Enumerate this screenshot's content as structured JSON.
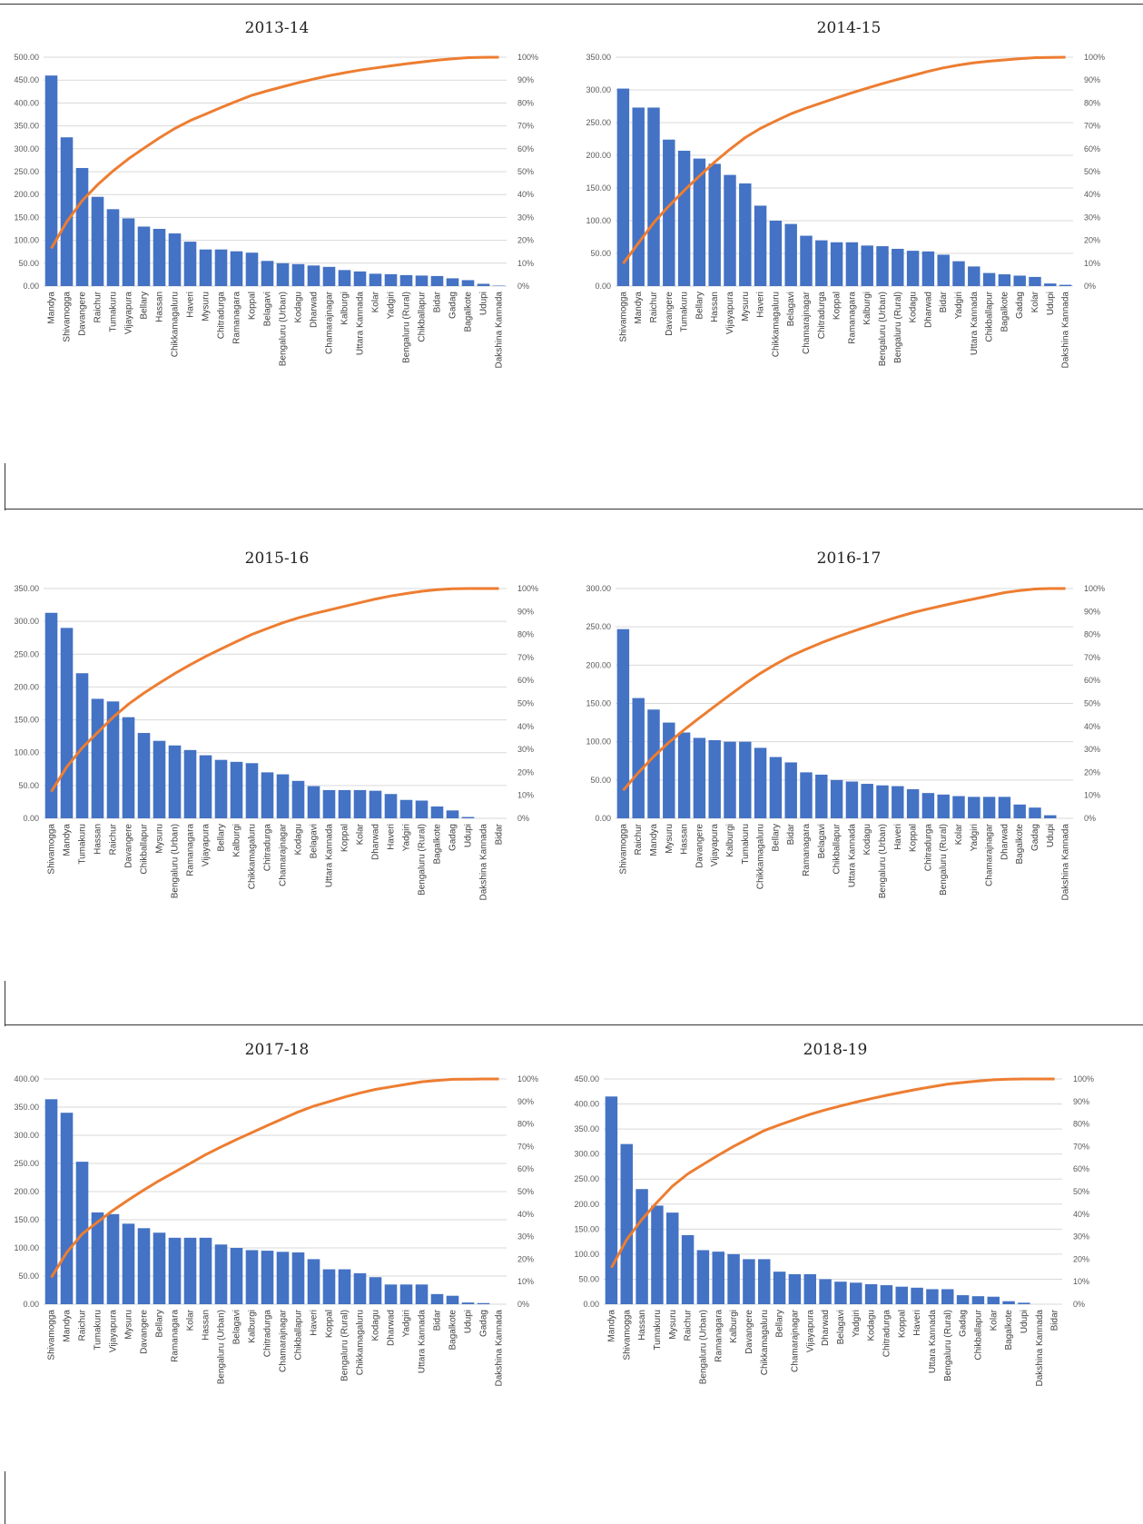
{
  "chart_data": [
    {
      "type": "bar",
      "title": "2013-14",
      "ylim": [
        0,
        500
      ],
      "yticks": [
        "0.00",
        "50.00",
        "100.00",
        "150.00",
        "200.00",
        "250.00",
        "300.00",
        "350.00",
        "400.00",
        "450.00",
        "500.00"
      ],
      "y2ticks": [
        "0%",
        "10%",
        "20%",
        "30%",
        "40%",
        "50%",
        "60%",
        "70%",
        "80%",
        "90%",
        "100%"
      ],
      "categories": [
        "Mandya",
        "Shivamogga",
        "Davangere",
        "Raichur",
        "Tumakuru",
        "Vijayapura",
        "Bellary",
        "Hassan",
        "Chikkamagaluru",
        "Haveri",
        "Mysuru",
        "Chitradurga",
        "Ramanagara",
        "Koppal",
        "Belagavi",
        "Bengaluru (Urban)",
        "Kodagu",
        "Dharwad",
        "Chamarajnagar",
        "Kalburgi",
        "Uttara Kannada",
        "Kolar",
        "Yadgiri",
        "Bengaluru (Rural)",
        "Chikballapur",
        "Bidar",
        "Gadag",
        "Bagalkote",
        "Udupi",
        "Dakshina Kannada"
      ],
      "values": [
        460,
        325,
        258,
        195,
        168,
        148,
        130,
        125,
        115,
        97,
        80,
        80,
        76,
        73,
        55,
        50,
        48,
        45,
        42,
        35,
        32,
        27,
        26,
        24,
        23,
        22,
        17,
        13,
        5,
        1
      ],
      "line_color": "#ED7D31",
      "bar_color": "#4472C4",
      "grid": true,
      "legend": "none"
    },
    {
      "type": "bar",
      "title": "2014-15",
      "ylim": [
        0,
        350
      ],
      "yticks": [
        "0.00",
        "50.00",
        "100.00",
        "150.00",
        "200.00",
        "250.00",
        "300.00",
        "350.00"
      ],
      "y2ticks": [
        "0%",
        "10%",
        "20%",
        "30%",
        "40%",
        "50%",
        "60%",
        "70%",
        "80%",
        "90%",
        "100%"
      ],
      "categories": [
        "Shivamogga",
        "Mandya",
        "Raichur",
        "Davangere",
        "Tumakuru",
        "Bellary",
        "Hassan",
        "Vijayapura",
        "Mysuru",
        "Haveri",
        "Chikkamagaluru",
        "Belagavi",
        "Chamarajnagar",
        "Chitradurga",
        "Koppal",
        "Ramanagara",
        "Kalburgi",
        "Bengaluru (Urban)",
        "Bengaluru (Rural)",
        "Kodagu",
        "Dharwad",
        "Bidar",
        "Yadgiri",
        "Uttara Kannada",
        "Chikballapur",
        "Bagalkote",
        "Gadag",
        "Kolar",
        "Udupi",
        "Dakshina Kannada"
      ],
      "values": [
        302,
        273,
        273,
        224,
        207,
        195,
        187,
        170,
        157,
        123,
        100,
        95,
        77,
        70,
        67,
        67,
        62,
        61,
        57,
        54,
        53,
        48,
        38,
        30,
        20,
        18,
        16,
        14,
        4,
        2
      ],
      "line_color": "#ED7D31",
      "bar_color": "#4472C4",
      "grid": true,
      "legend": "none"
    },
    {
      "type": "bar",
      "title": "2015-16",
      "ylim": [
        0,
        350
      ],
      "yticks": [
        "0.00",
        "50.00",
        "100.00",
        "150.00",
        "200.00",
        "250.00",
        "300.00",
        "350.00"
      ],
      "y2ticks": [
        "0%",
        "10%",
        "20%",
        "30%",
        "40%",
        "50%",
        "60%",
        "70%",
        "80%",
        "90%",
        "100%"
      ],
      "categories": [
        "Shivamogga",
        "Mandya",
        "Tumakuru",
        "Hassan",
        "Raichur",
        "Davangere",
        "Chikballapur",
        "Mysuru",
        "Bengaluru (Urban)",
        "Ramanagara",
        "Vijayapura",
        "Bellary",
        "Kalburgi",
        "Chikkamagaluru",
        "Chitradurga",
        "Chamarajnagar",
        "Kodagu",
        "Belagavi",
        "Uttara Kannada",
        "Koppal",
        "Kolar",
        "Dharwad",
        "Haveri",
        "Yadgiri",
        "Bengaluru (Rural)",
        "Bagalkote",
        "Gadag",
        "Udupi",
        "Dakshina Kannada",
        "Bidar"
      ],
      "values": [
        313,
        290,
        221,
        182,
        178,
        154,
        130,
        118,
        111,
        104,
        96,
        89,
        86,
        84,
        70,
        67,
        57,
        49,
        43,
        43,
        43,
        42,
        37,
        28,
        27,
        18,
        12,
        2,
        0,
        0
      ],
      "line_color": "#ED7D31",
      "bar_color": "#4472C4",
      "grid": true,
      "legend": "none"
    },
    {
      "type": "bar",
      "title": "2016-17",
      "ylim": [
        0,
        300
      ],
      "yticks": [
        "0.00",
        "50.00",
        "100.00",
        "150.00",
        "200.00",
        "250.00",
        "300.00"
      ],
      "y2ticks": [
        "0%",
        "10%",
        "20%",
        "30%",
        "40%",
        "50%",
        "60%",
        "70%",
        "80%",
        "90%",
        "100%"
      ],
      "categories": [
        "Shivamogga",
        "Raichur",
        "Mandya",
        "Mysuru",
        "Hassan",
        "Davangere",
        "Vijayapura",
        "Kalburgi",
        "Tumakuru",
        "Chikkamagaluru",
        "Bellary",
        "Bidar",
        "Ramanagara",
        "Belagavi",
        "Chikballapur",
        "Uttara Kannada",
        "Kodagu",
        "Bengaluru (Urban)",
        "Haveri",
        "Koppal",
        "Chitradurga",
        "Bengaluru (Rural)",
        "Kolar",
        "Yadgiri",
        "Chamarajnagar",
        "Dharwad",
        "Bagalkote",
        "Gadag",
        "Udupi",
        "Dakshina Kannada"
      ],
      "values": [
        247,
        157,
        142,
        125,
        112,
        105,
        102,
        100,
        100,
        92,
        80,
        73,
        60,
        57,
        50,
        48,
        45,
        43,
        42,
        38,
        33,
        31,
        29,
        28,
        28,
        28,
        18,
        14,
        4,
        0
      ],
      "line_color": "#ED7D31",
      "bar_color": "#4472C4",
      "grid": true,
      "legend": "none"
    },
    {
      "type": "bar",
      "title": "2017-18",
      "ylim": [
        0,
        400
      ],
      "yticks": [
        "0.00",
        "50.00",
        "100.00",
        "150.00",
        "200.00",
        "250.00",
        "300.00",
        "350.00",
        "400.00"
      ],
      "y2ticks": [
        "0%",
        "10%",
        "20%",
        "30%",
        "40%",
        "50%",
        "60%",
        "70%",
        "80%",
        "90%",
        "100%"
      ],
      "categories": [
        "Shivamogga",
        "Mandya",
        "Raichur",
        "Tumakuru",
        "Vijayapura",
        "Mysuru",
        "Davangere",
        "Bellary",
        "Ramanagara",
        "Kolar",
        "Hassan",
        "Bengaluru (Urban)",
        "Belagavi",
        "Kalburgi",
        "Chitradurga",
        "Chamarajnagar",
        "Chikballapur",
        "Haveri",
        "Koppal",
        "Bengaluru (Rural)",
        "Chikkamagaluru",
        "Kodagu",
        "Dharwad",
        "Yadgiri",
        "Uttara Kannada",
        "Bidar",
        "Bagalkote",
        "Udupi",
        "Gadag",
        "Dakshina Kannada"
      ],
      "values": [
        364,
        340,
        253,
        163,
        160,
        143,
        135,
        127,
        118,
        118,
        118,
        106,
        100,
        96,
        95,
        93,
        92,
        80,
        62,
        62,
        55,
        48,
        35,
        35,
        35,
        18,
        15,
        3,
        2,
        0
      ],
      "line_color": "#ED7D31",
      "bar_color": "#4472C4",
      "grid": true,
      "legend": "none"
    },
    {
      "type": "bar",
      "title": "2018-19",
      "ylim": [
        0,
        450
      ],
      "yticks": [
        "0.00",
        "50.00",
        "100.00",
        "150.00",
        "200.00",
        "250.00",
        "300.00",
        "350.00",
        "400.00",
        "450.00"
      ],
      "y2ticks": [
        "0%",
        "10%",
        "20%",
        "30%",
        "40%",
        "50%",
        "60%",
        "70%",
        "80%",
        "90%",
        "100%"
      ],
      "categories": [
        "Mandya",
        "Shivamogga",
        "Hassan",
        "Tumakuru",
        "Mysuru",
        "Raichur",
        "Bengaluru (Urban)",
        "Ramanagara",
        "Kalburgi",
        "Davangere",
        "Chikkamagaluru",
        "Bellary",
        "Chamarajnagar",
        "Vijayapura",
        "Dharwad",
        "Belagavi",
        "Yadgiri",
        "Kodagu",
        "Chitradurga",
        "Koppal",
        "Haveri",
        "Uttara Kannada",
        "Bengaluru (Rural)",
        "Gadag",
        "Chikballapur",
        "Kolar",
        "Bagalkote",
        "Udupi",
        "Dakshina Kannada",
        "Bidar"
      ],
      "values": [
        415,
        320,
        230,
        197,
        183,
        138,
        108,
        105,
        100,
        90,
        90,
        65,
        60,
        60,
        50,
        45,
        43,
        40,
        38,
        35,
        33,
        30,
        30,
        18,
        16,
        15,
        6,
        3,
        0,
        0
      ],
      "line_color": "#ED7D31",
      "bar_color": "#4472C4",
      "grid": true,
      "legend": "none"
    }
  ]
}
